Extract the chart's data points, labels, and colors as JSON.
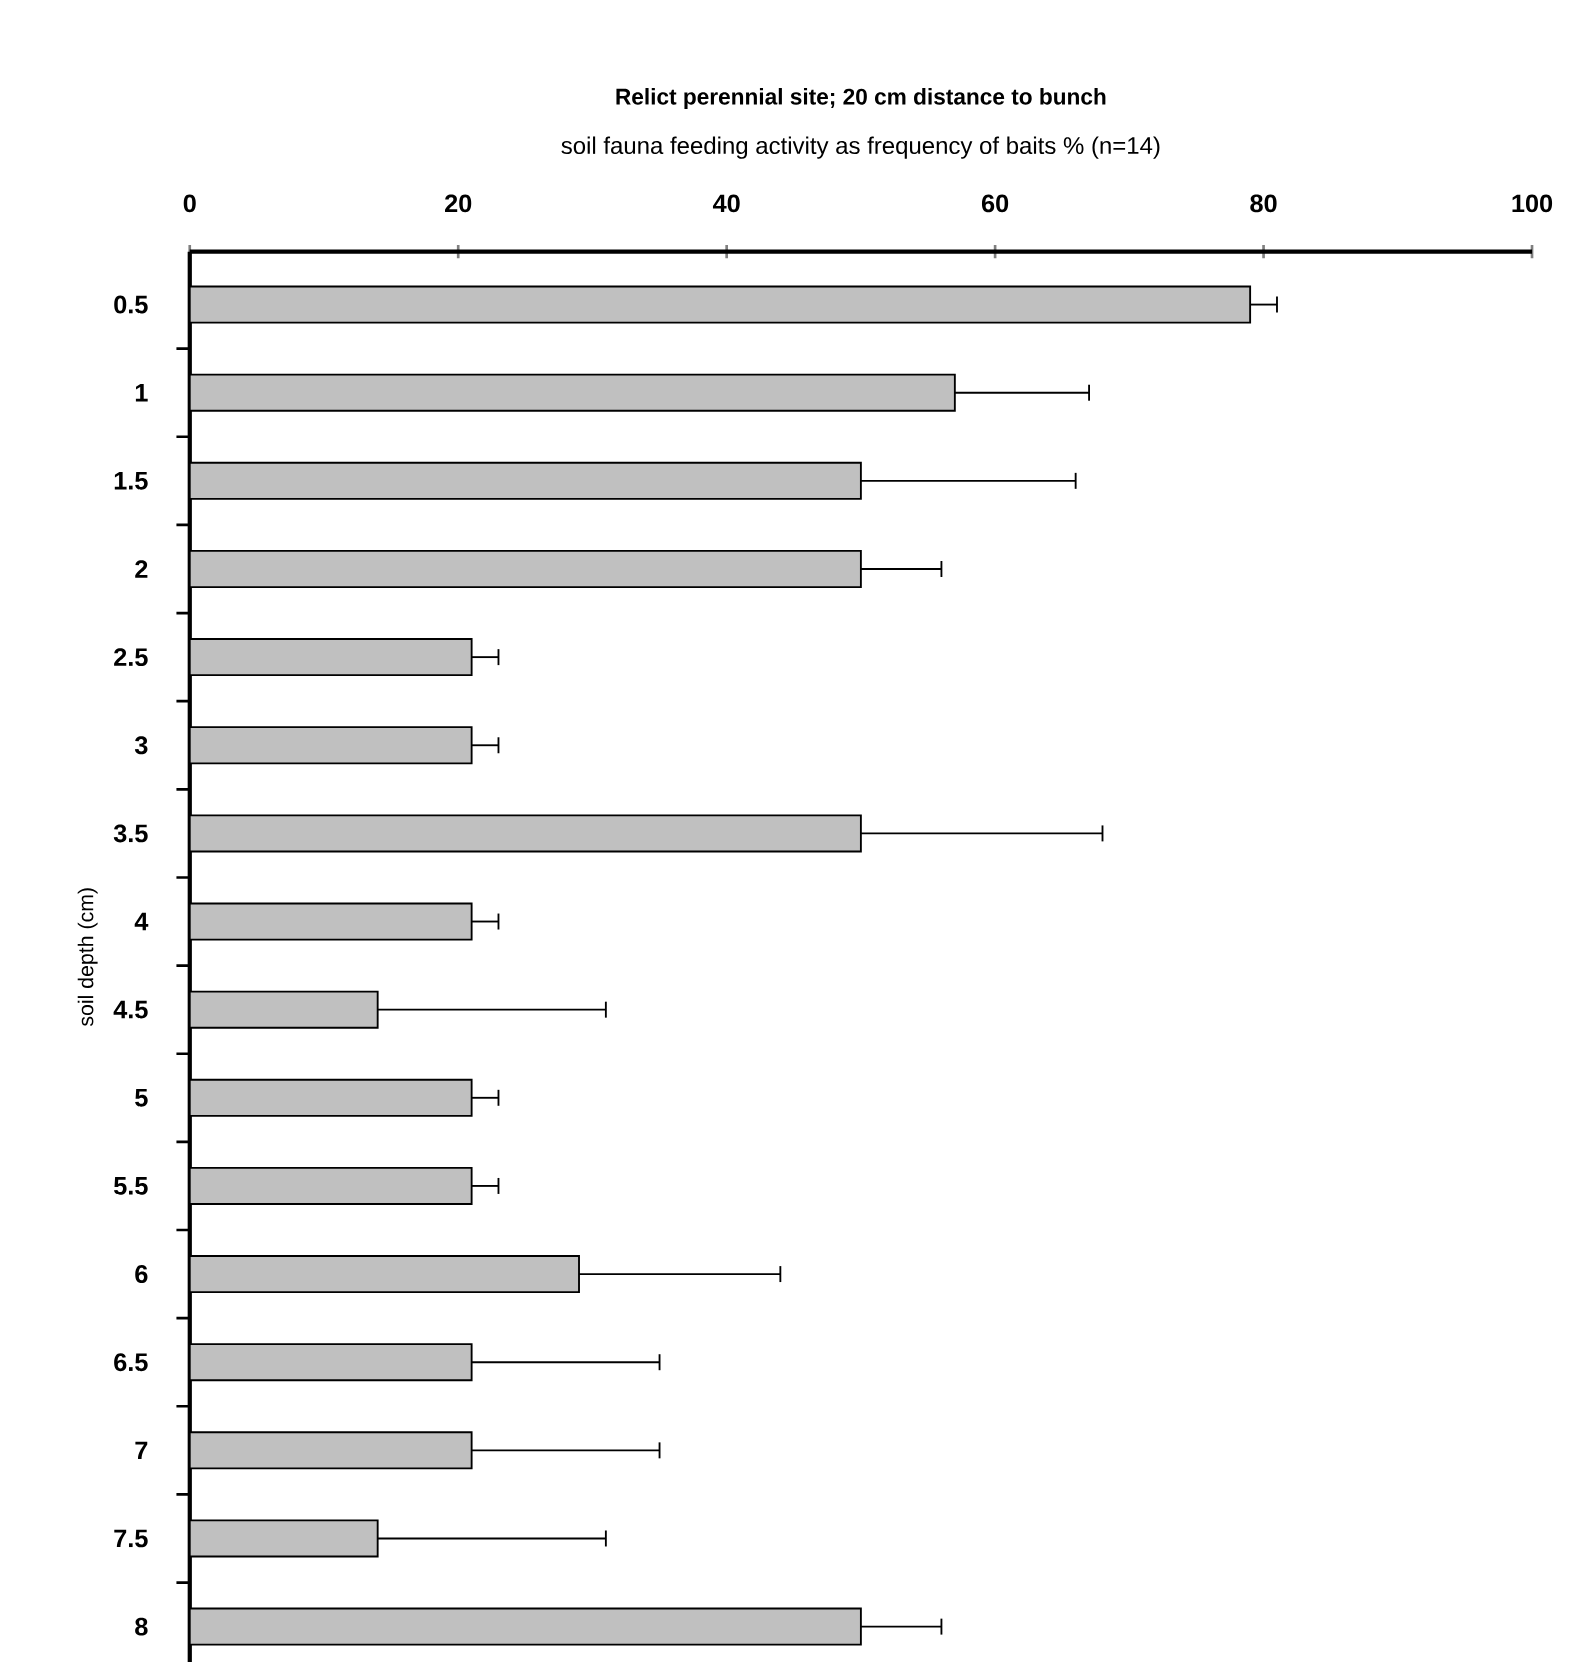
{
  "chart_data": {
    "type": "bar",
    "orientation": "horizontal",
    "title": "Relict perennial site; 20 cm distance to bunch",
    "xlabel": "soil fauna feeding activity as frequency of baits % (n=14)",
    "ylabel": "soil depth (cm)",
    "categories": [
      "0.5",
      "1",
      "1.5",
      "2",
      "2.5",
      "3",
      "3.5",
      "4",
      "4.5",
      "5",
      "5.5",
      "6",
      "6.5",
      "7",
      "7.5",
      "8"
    ],
    "values": [
      79,
      57,
      50,
      50,
      21,
      21,
      50,
      21,
      14,
      21,
      21,
      29,
      21,
      21,
      14,
      50
    ],
    "errors": [
      [
        79,
        81
      ],
      [
        57,
        67
      ],
      [
        50,
        66
      ],
      [
        50,
        56
      ],
      [
        21,
        23
      ],
      [
        21,
        23
      ],
      [
        50,
        68
      ],
      [
        21,
        23
      ],
      [
        14,
        31
      ],
      [
        21,
        23
      ],
      [
        21,
        23
      ],
      [
        29,
        44
      ],
      [
        21,
        35
      ],
      [
        21,
        35
      ],
      [
        14,
        31
      ],
      [
        50,
        56
      ]
    ],
    "color": "#c0c0c0",
    "xlim": [
      0,
      100
    ],
    "xticks": [
      0,
      20,
      40,
      60,
      80,
      100
    ],
    "grid": false
  }
}
